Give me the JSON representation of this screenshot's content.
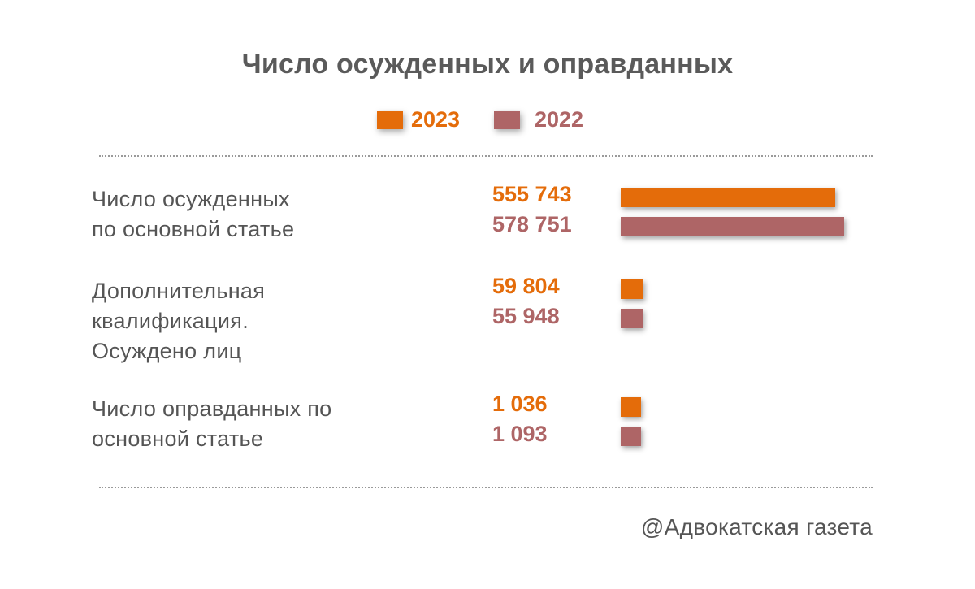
{
  "chart_data": {
    "type": "bar",
    "orientation": "horizontal",
    "title": "Число осужденных и оправданных",
    "legend_position": "top-center",
    "colors": {
      "2023": "#e46c0a",
      "2022": "#ae6566"
    },
    "series": [
      {
        "name": "2023",
        "values": [
          555743,
          59804,
          1036
        ],
        "labels": [
          "555 743",
          "59 804",
          "1 036"
        ]
      },
      {
        "name": "2022",
        "values": [
          578751,
          55948,
          1093
        ],
        "labels": [
          "578 751",
          "55 948",
          "1 093"
        ]
      }
    ],
    "categories": [
      [
        "Число осужденных",
        "по основной статье"
      ],
      [
        "Дополнительная",
        "квалификация.",
        "Осуждено лиц"
      ],
      [
        "Число оправданных по",
        "основной статье"
      ]
    ],
    "source": "@Адвокатская газета"
  }
}
